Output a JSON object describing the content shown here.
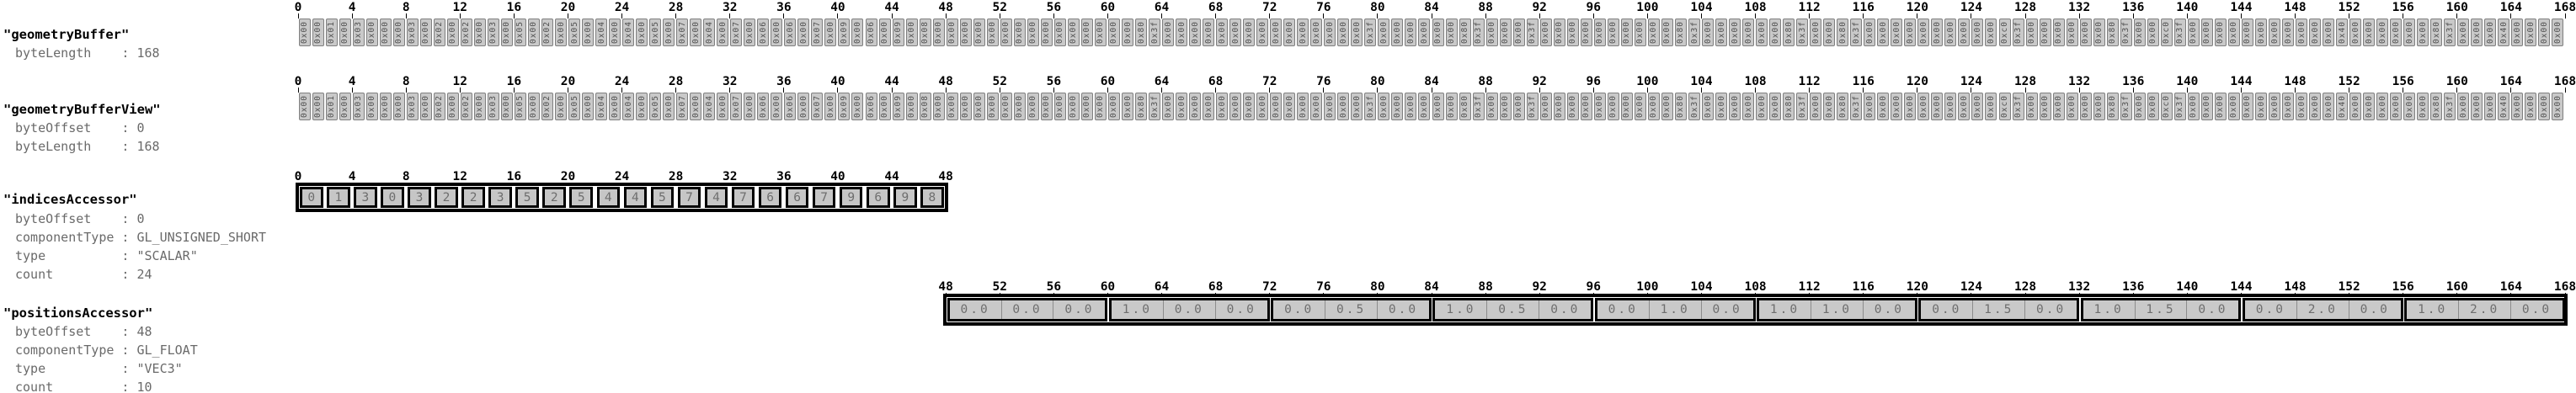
{
  "rows": [
    {
      "id": "geometryBuffer",
      "title": "\"geometryBuffer\"",
      "properties": [
        {
          "label": "byteLength",
          "value": "168"
        }
      ],
      "ruler": {
        "start": 0,
        "end": 168,
        "step": 4
      },
      "kind": "bytes"
    },
    {
      "id": "geometryBufferView",
      "title": "\"geometryBufferView\"",
      "properties": [
        {
          "label": "byteOffset",
          "value": "0"
        },
        {
          "label": "byteLength",
          "value": "168"
        }
      ],
      "ruler": {
        "start": 0,
        "end": 168,
        "step": 4
      },
      "kind": "bytes"
    },
    {
      "id": "indicesAccessor",
      "title": "\"indicesAccessor\"",
      "properties": [
        {
          "label": "byteOffset",
          "value": "0"
        },
        {
          "label": "componentType",
          "value": "GL_UNSIGNED_SHORT"
        },
        {
          "label": "type",
          "value": "\"SCALAR\""
        },
        {
          "label": "count",
          "value": "24"
        }
      ],
      "ruler": {
        "start": 0,
        "end": 48,
        "step": 4
      },
      "kind": "indices"
    },
    {
      "id": "positionsAccessor",
      "title": "\"positionsAccessor\"",
      "properties": [
        {
          "label": "byteOffset",
          "value": "48"
        },
        {
          "label": "componentType",
          "value": "GL_FLOAT"
        },
        {
          "label": "type",
          "value": "\"VEC3\""
        },
        {
          "label": "count",
          "value": "10"
        }
      ],
      "ruler": {
        "start": 48,
        "end": 168,
        "step": 4
      },
      "kind": "positions"
    }
  ],
  "bytes_hex": [
    "0x00",
    "0x00",
    "0x01",
    "0x00",
    "0x03",
    "0x00",
    "0x00",
    "0x00",
    "0x03",
    "0x00",
    "0x02",
    "0x00",
    "0x02",
    "0x00",
    "0x03",
    "0x00",
    "0x05",
    "0x00",
    "0x02",
    "0x00",
    "0x05",
    "0x00",
    "0x04",
    "0x00",
    "0x04",
    "0x00",
    "0x05",
    "0x00",
    "0x07",
    "0x00",
    "0x04",
    "0x00",
    "0x07",
    "0x00",
    "0x06",
    "0x00",
    "0x06",
    "0x00",
    "0x07",
    "0x00",
    "0x09",
    "0x00",
    "0x06",
    "0x00",
    "0x09",
    "0x00",
    "0x08",
    "0x00",
    "0x00",
    "0x00",
    "0x00",
    "0x00",
    "0x00",
    "0x00",
    "0x00",
    "0x00",
    "0x00",
    "0x00",
    "0x00",
    "0x00",
    "0x00",
    "0x00",
    "0x80",
    "0x3f",
    "0x00",
    "0x00",
    "0x00",
    "0x00",
    "0x00",
    "0x00",
    "0x00",
    "0x00",
    "0x00",
    "0x00",
    "0x00",
    "0x00",
    "0x00",
    "0x00",
    "0x00",
    "0x3f",
    "0x00",
    "0x00",
    "0x00",
    "0x00",
    "0x00",
    "0x00",
    "0x80",
    "0x3f",
    "0x00",
    "0x00",
    "0x00",
    "0x3f",
    "0x00",
    "0x00",
    "0x00",
    "0x00",
    "0x00",
    "0x00",
    "0x00",
    "0x00",
    "0x00",
    "0x00",
    "0x80",
    "0x3f",
    "0x00",
    "0x00",
    "0x00",
    "0x00",
    "0x00",
    "0x00",
    "0x80",
    "0x3f",
    "0x00",
    "0x00",
    "0x80",
    "0x3f",
    "0x00",
    "0x00",
    "0x00",
    "0x00",
    "0x00",
    "0x00",
    "0x00",
    "0x00",
    "0x00",
    "0x00",
    "0xc0",
    "0x3f",
    "0x00",
    "0x00",
    "0x00",
    "0x00",
    "0x00",
    "0x00",
    "0x80",
    "0x3f",
    "0x00",
    "0x00",
    "0xc0",
    "0x3f",
    "0x00",
    "0x00",
    "0x00",
    "0x00",
    "0x00",
    "0x00",
    "0x00",
    "0x00",
    "0x00",
    "0x00",
    "0x00",
    "0x40",
    "0x00",
    "0x00",
    "0x00",
    "0x00",
    "0x00",
    "0x00",
    "0x80",
    "0x3f",
    "0x00",
    "0x00",
    "0x00",
    "0x40",
    "0x00",
    "0x00",
    "0x00",
    "0x00"
  ],
  "indices": [
    0,
    1,
    3,
    0,
    3,
    2,
    2,
    3,
    5,
    2,
    5,
    4,
    4,
    5,
    7,
    4,
    7,
    6,
    6,
    7,
    9,
    6,
    9,
    8
  ],
  "positions": [
    [
      "0.0",
      "0.0",
      "0.0"
    ],
    [
      "1.0",
      "0.0",
      "0.0"
    ],
    [
      "0.0",
      "0.5",
      "0.0"
    ],
    [
      "1.0",
      "0.5",
      "0.0"
    ],
    [
      "0.0",
      "1.0",
      "0.0"
    ],
    [
      "1.0",
      "1.0",
      "0.0"
    ],
    [
      "0.0",
      "1.5",
      "0.0"
    ],
    [
      "1.0",
      "1.5",
      "0.0"
    ],
    [
      "0.0",
      "2.0",
      "0.0"
    ],
    [
      "1.0",
      "2.0",
      "0.0"
    ]
  ],
  "colors": {
    "strip_fill": "#c9c9c9",
    "byte_cell_border": "#7f7f7f",
    "accessor_border": "#000000",
    "value_text": "#6e6e6e",
    "property_text": "#6a6a6a",
    "title_text": "#000000"
  }
}
